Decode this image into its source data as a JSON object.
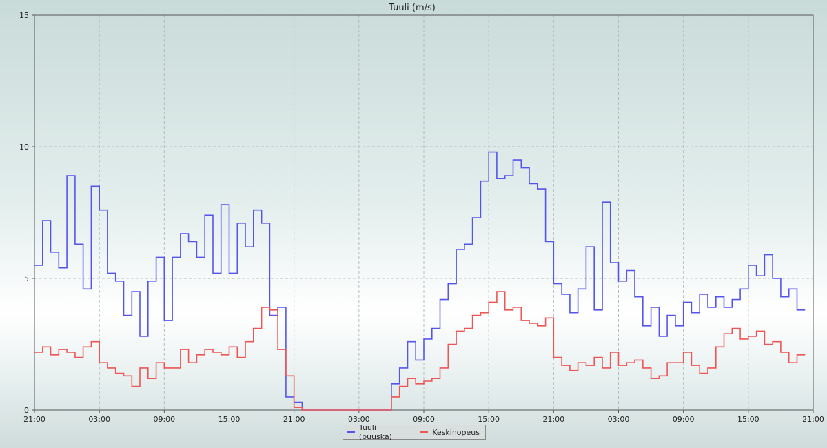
{
  "chart_data": {
    "type": "line",
    "title": "Tuuli (m/s)",
    "xlabel": "",
    "ylabel": "",
    "ylim": [
      0,
      15
    ],
    "yticks": [
      "0",
      "5",
      "10",
      "15"
    ],
    "xlim": [
      0,
      48
    ],
    "xticks": [
      "21:00",
      "03:00",
      "09:00",
      "15:00",
      "21:00",
      "03:00",
      "09:00",
      "15:00",
      "21:00",
      "03:00",
      "09:00",
      "15:00",
      "21:00"
    ],
    "grid": true,
    "legend_position": "bottom-center",
    "x_unit": "hours since first 21:00",
    "series": [
      {
        "name": "Tuuli (puuska)",
        "color": "#5555ee",
        "x": [
          0,
          0.5,
          1,
          1.5,
          2,
          2.5,
          3,
          3.5,
          4,
          4.5,
          5,
          5.5,
          6,
          6.5,
          7,
          7.5,
          8,
          8.5,
          9,
          9.5,
          10,
          10.5,
          11,
          11.5,
          12,
          12.5,
          13,
          13.5,
          14,
          14.5,
          15,
          15.5,
          16,
          16.5,
          17,
          17.5,
          18,
          18.5,
          19,
          19.5,
          20,
          20.5,
          21,
          21.5,
          22,
          22.5,
          23,
          23.5,
          24,
          24.5,
          25,
          25.5,
          26,
          26.5,
          27,
          27.5,
          28,
          28.5,
          29,
          29.5,
          30,
          30.5,
          31,
          31.5,
          32,
          32.5,
          33,
          33.5,
          34,
          34.5,
          35,
          35.5,
          36,
          36.5,
          37,
          37.5,
          38,
          38.5,
          39,
          39.5,
          40,
          40.5,
          41,
          41.5,
          42,
          42.5,
          43,
          43.5,
          44,
          44.5,
          45,
          45.5,
          46,
          46.5,
          47
        ],
        "y": [
          5.5,
          7.2,
          6.0,
          5.4,
          8.9,
          6.3,
          4.6,
          8.5,
          7.6,
          5.2,
          4.9,
          3.6,
          4.5,
          2.8,
          4.9,
          5.8,
          3.4,
          5.8,
          6.7,
          6.4,
          5.8,
          7.4,
          5.2,
          7.8,
          5.2,
          7.1,
          6.2,
          7.6,
          7.1,
          3.6,
          3.9,
          0.5,
          0.3,
          0,
          0,
          0,
          0,
          0,
          0,
          0,
          0,
          0,
          0,
          0,
          1.0,
          1.6,
          2.6,
          1.9,
          2.7,
          3.1,
          4.2,
          4.8,
          6.1,
          6.3,
          7.3,
          8.7,
          9.8,
          8.8,
          8.9,
          9.5,
          9.2,
          8.6,
          8.4,
          6.4,
          4.8,
          4.4,
          3.7,
          4.6,
          6.2,
          3.8,
          7.9,
          5.6,
          4.9,
          5.3,
          4.3,
          3.2,
          3.9,
          2.8,
          3.6,
          3.2,
          4.1,
          3.7,
          4.4,
          3.9,
          4.3,
          3.9,
          4.2,
          4.6,
          5.5,
          5.1,
          5.9,
          5.0,
          4.3,
          4.6,
          3.8
        ]
      },
      {
        "name": "Keskinopeus",
        "color": "#ee5555",
        "x": [
          0,
          0.5,
          1,
          1.5,
          2,
          2.5,
          3,
          3.5,
          4,
          4.5,
          5,
          5.5,
          6,
          6.5,
          7,
          7.5,
          8,
          8.5,
          9,
          9.5,
          10,
          10.5,
          11,
          11.5,
          12,
          12.5,
          13,
          13.5,
          14,
          14.5,
          15,
          15.5,
          16,
          16.5,
          17,
          17.5,
          18,
          18.5,
          19,
          19.5,
          20,
          20.5,
          21,
          21.5,
          22,
          22.5,
          23,
          23.5,
          24,
          24.5,
          25,
          25.5,
          26,
          26.5,
          27,
          27.5,
          28,
          28.5,
          29,
          29.5,
          30,
          30.5,
          31,
          31.5,
          32,
          32.5,
          33,
          33.5,
          34,
          34.5,
          35,
          35.5,
          36,
          36.5,
          37,
          37.5,
          38,
          38.5,
          39,
          39.5,
          40,
          40.5,
          41,
          41.5,
          42,
          42.5,
          43,
          43.5,
          44,
          44.5,
          45,
          45.5,
          46,
          46.5,
          47
        ],
        "y": [
          2.2,
          2.4,
          2.1,
          2.3,
          2.2,
          2.0,
          2.4,
          2.6,
          1.8,
          1.6,
          1.4,
          1.3,
          0.9,
          1.6,
          1.2,
          1.8,
          1.6,
          1.6,
          2.3,
          1.8,
          2.1,
          2.3,
          2.2,
          2.1,
          2.4,
          2.0,
          2.6,
          3.1,
          3.9,
          3.8,
          2.3,
          1.3,
          0.1,
          0,
          0,
          0,
          0,
          0,
          0,
          0,
          0,
          0,
          0,
          0,
          0.5,
          0.9,
          1.2,
          1.0,
          1.1,
          1.2,
          1.6,
          2.5,
          3.0,
          3.1,
          3.6,
          3.7,
          4.1,
          4.5,
          3.8,
          3.9,
          3.4,
          3.3,
          3.2,
          3.5,
          2.0,
          1.7,
          1.5,
          1.8,
          1.7,
          2.0,
          1.6,
          2.2,
          1.7,
          1.8,
          1.9,
          1.6,
          1.2,
          1.3,
          1.8,
          1.8,
          2.2,
          1.7,
          1.4,
          1.6,
          2.4,
          2.9,
          3.1,
          2.7,
          2.8,
          3.0,
          2.5,
          2.6,
          2.2,
          1.8,
          2.1
        ]
      }
    ]
  }
}
